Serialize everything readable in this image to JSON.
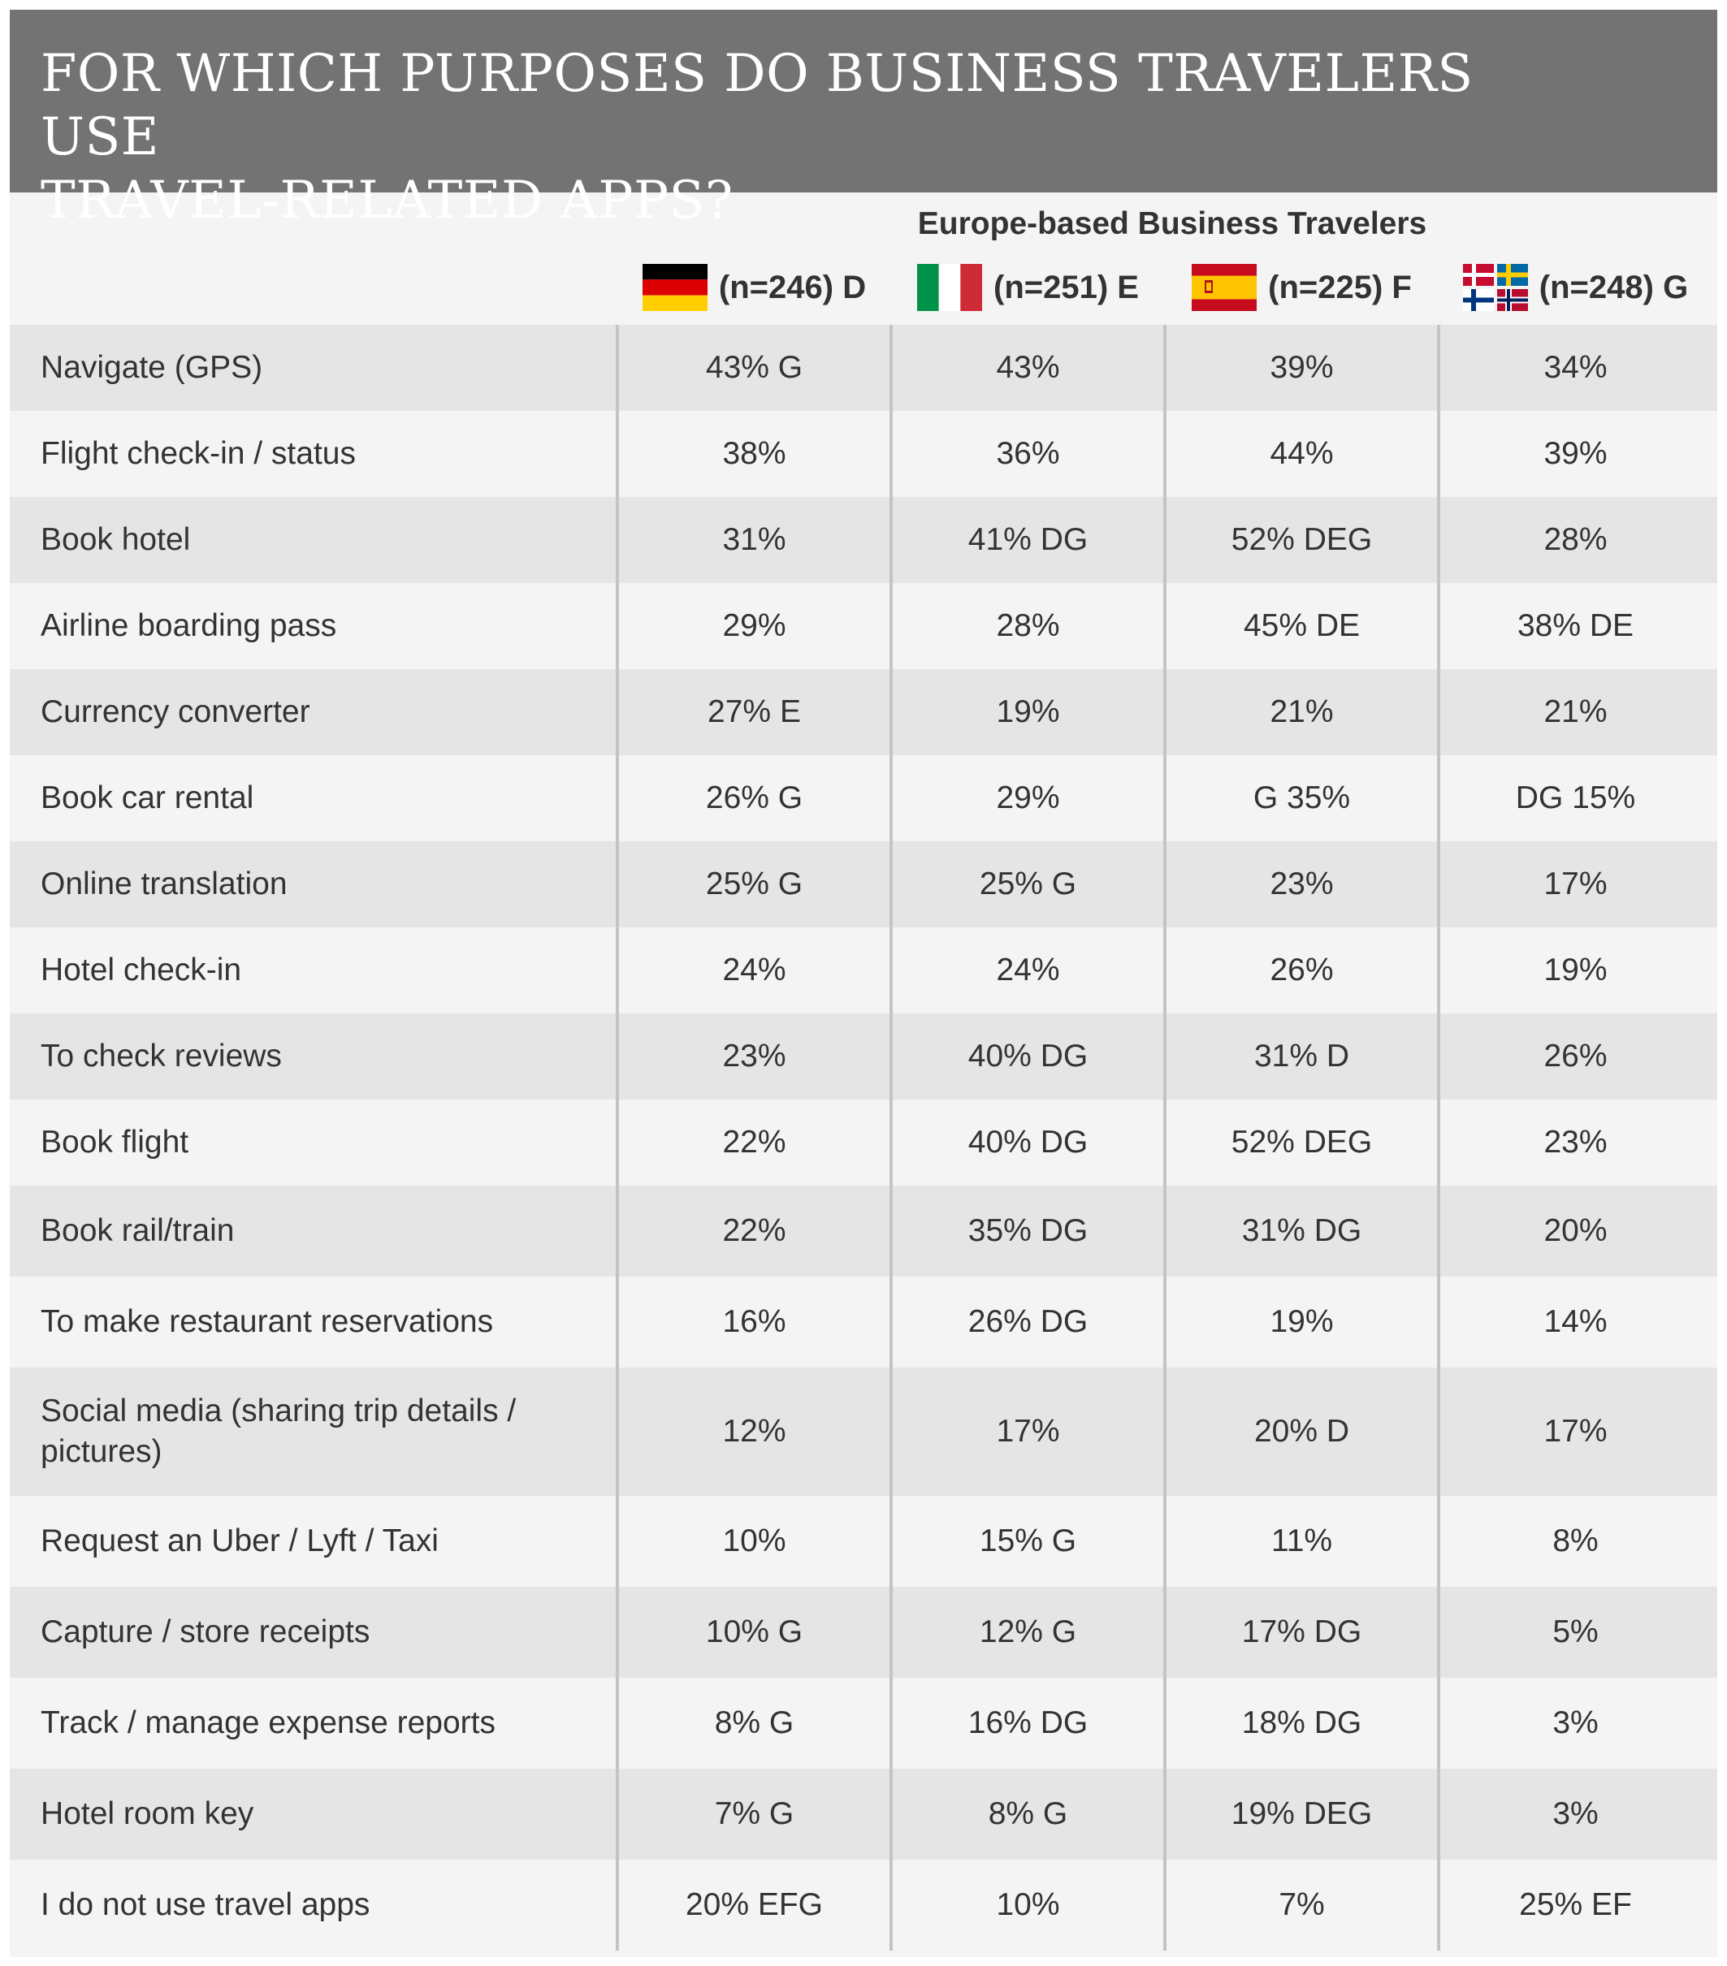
{
  "title": "FOR WHICH PURPOSES DO BUSINESS TRAVELERS USE\nTRAVEL-RELATED APPS?",
  "group_label": "Europe-based Business Travelers",
  "flag_icons": [
    "germany-flag-icon",
    "italy-flag-icon",
    "spain-flag-icon",
    "nordic-flags-icon"
  ],
  "colors": {
    "title_bar": "#737373",
    "row_shade": "#e5e5e5",
    "row_light": "#f4f4f4",
    "divider": "#c4c4c4",
    "text": "#333333"
  },
  "chart_data": {
    "type": "table",
    "columns": [
      {
        "label": "(n=246) D",
        "flag": "germany-flag-icon"
      },
      {
        "label": "(n=251) E",
        "flag": "italy-flag-icon"
      },
      {
        "label": "(n=225) F",
        "flag": "spain-flag-icon"
      },
      {
        "label": "(n=248) G",
        "flag": "nordic-flags-icon"
      }
    ],
    "rows": [
      {
        "label": "Navigate (GPS)",
        "values": [
          "43% G",
          "43%",
          "39%",
          "34%"
        ]
      },
      {
        "label": "Flight check-in / status",
        "values": [
          "38%",
          "36%",
          "44%",
          "39%"
        ]
      },
      {
        "label": "Book hotel",
        "values": [
          "31%",
          "41% DG",
          "52% DEG",
          "28%"
        ]
      },
      {
        "label": "Airline boarding pass",
        "values": [
          "29%",
          "28%",
          "45% DE",
          "38% DE"
        ]
      },
      {
        "label": "Currency converter",
        "values": [
          "27% E",
          "19%",
          "21%",
          "21%"
        ]
      },
      {
        "label": "Book car rental",
        "values": [
          "26% G",
          "29%",
          "G 35%",
          "DG 15%"
        ]
      },
      {
        "label": "Online translation",
        "values": [
          "25% G",
          "25% G",
          "23%",
          "17%"
        ]
      },
      {
        "label": "Hotel check-in",
        "values": [
          "24%",
          "24%",
          "26%",
          "19%"
        ]
      },
      {
        "label": "To check reviews",
        "values": [
          "23%",
          "40% DG",
          "31% D",
          "26%"
        ]
      },
      {
        "label": "Book flight",
        "values": [
          "22%",
          "40% DG",
          "52% DEG",
          "23%"
        ]
      },
      {
        "label": "Book rail/train",
        "values": [
          "22%",
          "35% DG",
          "31% DG",
          "20%"
        ]
      },
      {
        "label": "To make restaurant reservations",
        "values": [
          "16%",
          "26% DG",
          "19%",
          "14%"
        ]
      },
      {
        "label": "Social media (sharing trip details / pictures)",
        "values": [
          "12%",
          "17%",
          "20% D",
          "17%"
        ]
      },
      {
        "label": "Request an Uber / Lyft / Taxi",
        "values": [
          "10%",
          "15% G",
          "11%",
          "8%"
        ]
      },
      {
        "label": "Capture / store receipts",
        "values": [
          "10% G",
          "12% G",
          "17% DG",
          "5%"
        ]
      },
      {
        "label": "Track / manage expense reports",
        "values": [
          "8% G",
          "16% DG",
          "18% DG",
          "3%"
        ]
      },
      {
        "label": "Hotel room key",
        "values": [
          "7% G",
          "8% G",
          "19% DEG",
          "3%"
        ]
      },
      {
        "label": "I do not use travel apps",
        "values": [
          "20% EFG",
          "10%",
          "7%",
          "25% EF"
        ]
      }
    ]
  }
}
